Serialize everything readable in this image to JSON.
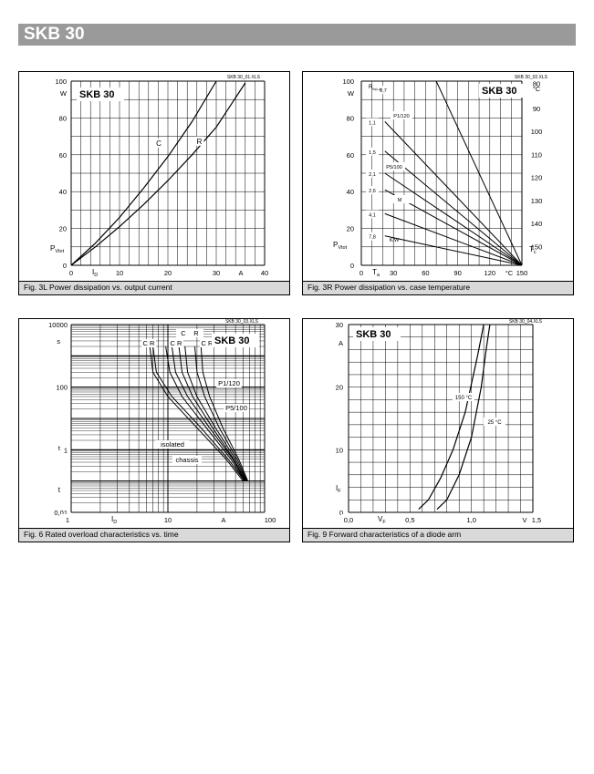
{
  "header": {
    "title": "SKB 30"
  },
  "charts": [
    {
      "id": "fig3l",
      "file_tag": "SKB 30_01.XLS",
      "caption": "Fig. 3L Power dissipation vs. output current",
      "box_label": "SKB 30",
      "y_unit": "W",
      "y_symbol": "P",
      "y_symbol_sub": "Vtot",
      "x_symbol": "I",
      "x_symbol_sub": "D",
      "x_unit": "A",
      "x_ticks": [
        "0",
        "10",
        "20",
        "30",
        "40"
      ],
      "y_ticks": [
        "0",
        "20",
        "40",
        "60",
        "80",
        "100"
      ]
    },
    {
      "id": "fig3r",
      "file_tag": "SKB 30_02.XLS",
      "caption": "Fig. 3R Power dissipation vs. case temperature",
      "box_label": "SKB 30",
      "y_unit": "W",
      "y_symbol": "P",
      "y_symbol_sub": "Vtot",
      "x_symbol": "T",
      "x_symbol_sub": "a",
      "x_unit": "°C",
      "right_unit": "°C",
      "right_symbol": "T",
      "right_symbol_sub": "c",
      "rth_label": "R",
      "rth_sub": "th(c-a)",
      "rth_unit": "K/W",
      "x_ticks": [
        "0",
        "30",
        "60",
        "90",
        "120",
        "150"
      ],
      "y_ticks": [
        "0",
        "20",
        "40",
        "60",
        "80",
        "100"
      ],
      "right_ticks": [
        "80",
        "90",
        "100",
        "110",
        "120",
        "130",
        "140",
        "150"
      ],
      "rth_values": [
        "0,7",
        "1,1",
        "1,5",
        "2,1",
        "2,6",
        "4,1",
        "7,8"
      ],
      "line_labels": [
        "P1/120",
        "P5/100",
        "M"
      ]
    },
    {
      "id": "fig6",
      "file_tag": "SKB 30_03.XLS",
      "caption": "Fig. 6 Rated overload characteristics vs. time",
      "box_label": "SKB 30",
      "y_unit": "s",
      "y_symbol": "t",
      "x_symbol": "I",
      "x_symbol_sub": "D",
      "x_unit": "A",
      "x_ticks": [
        "1",
        "10",
        "100"
      ],
      "y_ticks": [
        "0,01",
        "1",
        "100",
        "10000"
      ],
      "cr_labels": [
        "C R",
        "C R",
        "C R",
        "C",
        "R"
      ],
      "line_labels": [
        "P1/120",
        "P5/100",
        "isolated",
        "chassis"
      ]
    },
    {
      "id": "fig9",
      "file_tag": "SKB 30_04.XLS",
      "caption": "Fig. 9 Forward characteristics of a diode arm",
      "box_label": "SKB 30",
      "y_unit": "A",
      "y_symbol": "I",
      "y_symbol_sub": "F",
      "x_symbol": "V",
      "x_symbol_sub": "F",
      "x_unit": "V",
      "x_ticks": [
        "0,0",
        "0,5",
        "1,0",
        "1,5"
      ],
      "y_ticks": [
        "0",
        "10",
        "20",
        "30"
      ],
      "line_labels": [
        "150 °C",
        "25 °C"
      ]
    }
  ],
  "chart_data": [
    {
      "type": "line",
      "title": "Fig. 3L Power dissipation vs. output current",
      "xlabel": "ID",
      "ylabel": "PVtot",
      "xlim": [
        0,
        40
      ],
      "ylim": [
        0,
        100
      ],
      "grid": true,
      "series": [
        {
          "name": "C",
          "x": [
            0,
            5,
            10,
            15,
            20,
            25,
            30
          ],
          "y": [
            0,
            12,
            26,
            42,
            59,
            78,
            100
          ]
        },
        {
          "name": "R",
          "x": [
            0,
            5,
            10,
            15,
            20,
            25,
            30,
            36
          ],
          "y": [
            0,
            10,
            21,
            33,
            46,
            60,
            75,
            99
          ]
        }
      ]
    },
    {
      "type": "line",
      "title": "Fig. 3R Power dissipation vs. case temperature",
      "xlabel": "Ta",
      "ylabel": "PVtot",
      "y2label": "Tc",
      "xlim": [
        0,
        150
      ],
      "ylim": [
        0,
        100
      ],
      "y2lim": [
        150,
        80
      ],
      "grid": true,
      "series": [
        {
          "name": "0,7",
          "x": [
            70,
            150
          ],
          "y": [
            100,
            0
          ]
        },
        {
          "name": "1,1",
          "x": [
            22,
            150
          ],
          "y": [
            78,
            0
          ]
        },
        {
          "name": "1,5",
          "x": [
            22,
            150
          ],
          "y": [
            62,
            0
          ]
        },
        {
          "name": "2,1",
          "x": [
            22,
            150
          ],
          "y": [
            50,
            0
          ]
        },
        {
          "name": "2,6",
          "x": [
            22,
            150
          ],
          "y": [
            41,
            0
          ]
        },
        {
          "name": "4,1",
          "x": [
            22,
            150
          ],
          "y": [
            28,
            0
          ]
        },
        {
          "name": "7,8",
          "x": [
            22,
            150
          ],
          "y": [
            16,
            0
          ]
        }
      ]
    },
    {
      "type": "line",
      "title": "Fig. 6 Rated overload characteristics vs. time",
      "xlabel": "ID",
      "ylabel": "t",
      "xscale": "log",
      "yscale": "log",
      "xlim": [
        1,
        100
      ],
      "ylim": [
        0.01,
        10000
      ],
      "grid": true,
      "series": [
        {
          "name": "C",
          "x": [
            6.5,
            7,
            10,
            20,
            40,
            60
          ],
          "y": [
            2000,
            300,
            50,
            5,
            0.5,
            0.1
          ]
        },
        {
          "name": "R",
          "x": [
            7,
            7.6,
            11,
            22,
            42,
            62
          ],
          "y": [
            2000,
            300,
            50,
            5,
            0.5,
            0.1
          ]
        },
        {
          "name": "C",
          "x": [
            9.5,
            10.5,
            14,
            25,
            45,
            62
          ],
          "y": [
            2000,
            300,
            50,
            5,
            0.5,
            0.1
          ]
        },
        {
          "name": "R",
          "x": [
            11,
            12,
            16,
            27,
            47,
            63
          ],
          "y": [
            2000,
            300,
            50,
            5,
            0.5,
            0.1
          ]
        },
        {
          "name": "C",
          "x": [
            13,
            14,
            18,
            29,
            48,
            64
          ],
          "y": [
            2000,
            300,
            50,
            5,
            0.5,
            0.1
          ]
        },
        {
          "name": "R",
          "x": [
            15,
            16,
            20,
            31,
            50,
            65
          ],
          "y": [
            2000,
            300,
            50,
            5,
            0.5,
            0.1
          ]
        },
        {
          "name": "C",
          "x": [
            19,
            20,
            24,
            34,
            52,
            66
          ],
          "y": [
            2000,
            300,
            50,
            5,
            0.5,
            0.1
          ]
        },
        {
          "name": "R",
          "x": [
            22,
            23,
            27,
            37,
            54,
            67
          ],
          "y": [
            2000,
            300,
            50,
            5,
            0.5,
            0.1
          ]
        }
      ]
    },
    {
      "type": "line",
      "title": "Fig. 9 Forward characteristics of a diode arm",
      "xlabel": "VF",
      "ylabel": "IF",
      "xlim": [
        0,
        1.5
      ],
      "ylim": [
        0,
        30
      ],
      "grid": true,
      "series": [
        {
          "name": "150 °C",
          "x": [
            0.57,
            0.65,
            0.75,
            0.85,
            0.95,
            1.05,
            1.1
          ],
          "y": [
            0.5,
            2,
            5.5,
            10,
            16,
            25,
            30
          ]
        },
        {
          "name": "25 °C",
          "x": [
            0.72,
            0.8,
            0.9,
            1.0,
            1.08,
            1.12,
            1.15
          ],
          "y": [
            0.5,
            2,
            6,
            12,
            20,
            26,
            30
          ]
        }
      ]
    }
  ]
}
